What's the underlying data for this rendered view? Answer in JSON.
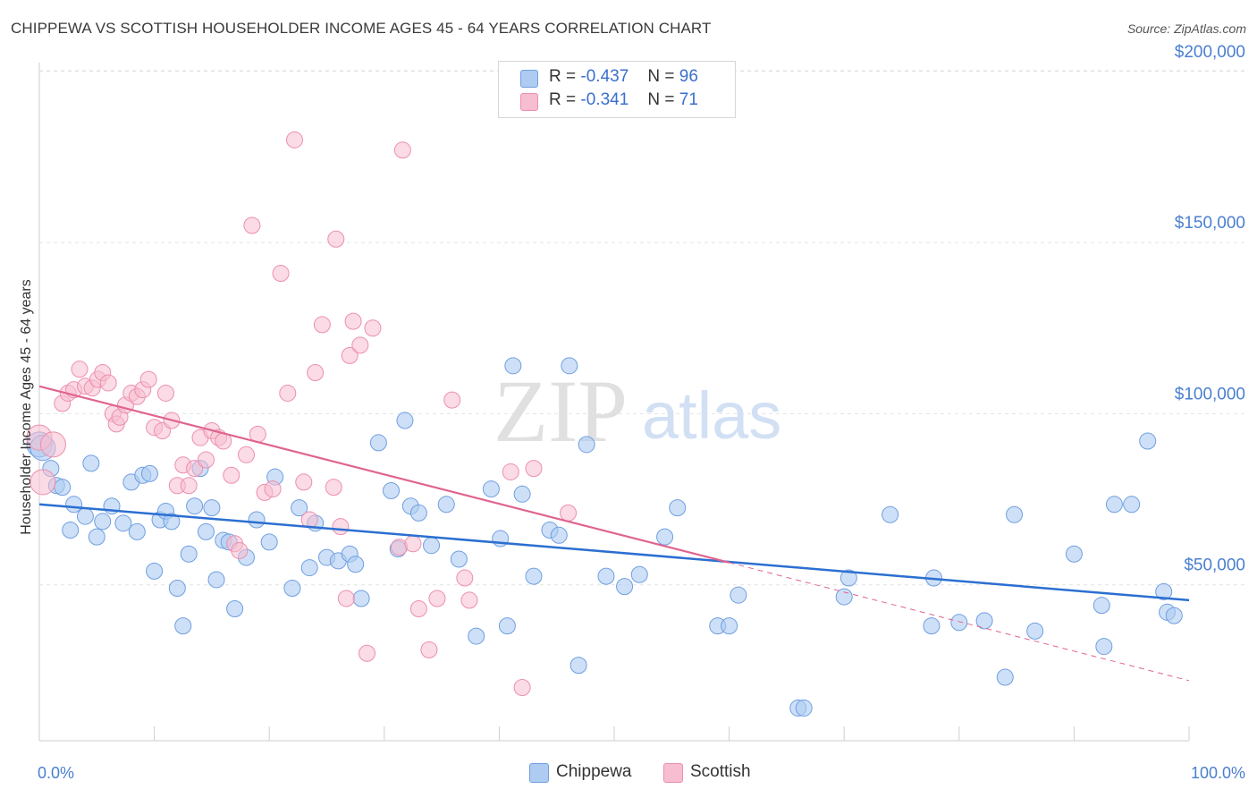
{
  "header": {
    "title": "CHIPPEWA VS SCOTTISH HOUSEHOLDER INCOME AGES 45 - 64 YEARS CORRELATION CHART",
    "source": "Source: ZipAtlas.com"
  },
  "watermark": {
    "zip": "ZIP",
    "atlas": "atlas"
  },
  "legend": {
    "chippewa": {
      "r_label": "R =",
      "r_value": "-0.437",
      "n_label": "N =",
      "n_value": "96"
    },
    "scottish": {
      "r_label": "R =",
      "r_value": "-0.341",
      "n_label": "N =",
      "n_value": "71"
    }
  },
  "colors": {
    "chippewa_fill": "#aecbf2",
    "chippewa_stroke": "#6f9fe0",
    "chippewa_line": "#2b6fd1",
    "scottish_fill": "#f7bdd0",
    "scottish_stroke": "#ec8fae",
    "scottish_line": "#e0648e",
    "axis_text": "#4a7fd0",
    "grid": "#e3e3e3"
  },
  "chart_data": {
    "type": "scatter",
    "title": "CHIPPEWA VS SCOTTISH HOUSEHOLDER INCOME AGES 45 - 64 YEARS CORRELATION CHART",
    "xlabel": "",
    "ylabel": "Householder Income Ages 45 - 64 years",
    "xlim": [
      0,
      100
    ],
    "ylim": [
      0,
      210000
    ],
    "x_tick_labels": [
      "0.0%",
      "100.0%"
    ],
    "y_ticks": [
      50000,
      100000,
      150000,
      200000
    ],
    "y_tick_labels": [
      "$50,000",
      "$100,000",
      "$150,000",
      "$200,000"
    ],
    "grid": true,
    "legend_position": "top-center",
    "series": [
      {
        "name": "Chippewa",
        "r": -0.437,
        "n": 96,
        "trend": {
          "x": [
            0,
            100
          ],
          "y": [
            73500,
            45500
          ]
        },
        "points": [
          [
            0,
            91000
          ],
          [
            0.3,
            90000
          ],
          [
            1,
            84000
          ],
          [
            1.5,
            79000
          ],
          [
            2,
            78500
          ],
          [
            2.7,
            66000
          ],
          [
            3,
            73500
          ],
          [
            4,
            70000
          ],
          [
            4.5,
            85500
          ],
          [
            5,
            64000
          ],
          [
            5.5,
            68500
          ],
          [
            6.3,
            73000
          ],
          [
            7.3,
            68000
          ],
          [
            8,
            80000
          ],
          [
            8.5,
            65500
          ],
          [
            9,
            82000
          ],
          [
            9.6,
            82500
          ],
          [
            10,
            54000
          ],
          [
            10.5,
            69000
          ],
          [
            11,
            71500
          ],
          [
            11.5,
            68500
          ],
          [
            12,
            49000
          ],
          [
            12.5,
            38000
          ],
          [
            13,
            59000
          ],
          [
            13.5,
            73000
          ],
          [
            14,
            84000
          ],
          [
            14.5,
            65500
          ],
          [
            15,
            72500
          ],
          [
            15.4,
            51500
          ],
          [
            16,
            63000
          ],
          [
            16.5,
            62500
          ],
          [
            17,
            43000
          ],
          [
            18,
            58000
          ],
          [
            18.9,
            69000
          ],
          [
            20,
            62500
          ],
          [
            20.5,
            81500
          ],
          [
            22,
            49000
          ],
          [
            22.6,
            72500
          ],
          [
            23.5,
            55000
          ],
          [
            24,
            68000
          ],
          [
            25,
            58000
          ],
          [
            26,
            57000
          ],
          [
            27,
            59000
          ],
          [
            27.5,
            56000
          ],
          [
            28,
            46000
          ],
          [
            29.5,
            91500
          ],
          [
            30.6,
            77500
          ],
          [
            31.2,
            60500
          ],
          [
            31.8,
            98000
          ],
          [
            32.3,
            73000
          ],
          [
            33,
            71000
          ],
          [
            34.1,
            61500
          ],
          [
            35.4,
            73500
          ],
          [
            36.5,
            57500
          ],
          [
            38,
            35000
          ],
          [
            39.3,
            78000
          ],
          [
            40.1,
            63500
          ],
          [
            40.7,
            38000
          ],
          [
            41.2,
            114000
          ],
          [
            42,
            76500
          ],
          [
            43,
            52500
          ],
          [
            44.4,
            66000
          ],
          [
            45.2,
            64500
          ],
          [
            46.1,
            114000
          ],
          [
            46.9,
            26500
          ],
          [
            47.6,
            91000
          ],
          [
            49.3,
            52500
          ],
          [
            50.9,
            49500
          ],
          [
            52.2,
            53000
          ],
          [
            54.4,
            64000
          ],
          [
            55.5,
            72500
          ],
          [
            59,
            38000
          ],
          [
            60,
            38000
          ],
          [
            60.8,
            47000
          ],
          [
            66,
            14000
          ],
          [
            66.5,
            14000
          ],
          [
            70,
            46500
          ],
          [
            70.4,
            52000
          ],
          [
            74,
            70500
          ],
          [
            77.6,
            38000
          ],
          [
            77.8,
            52000
          ],
          [
            80,
            39000
          ],
          [
            82.2,
            39500
          ],
          [
            84,
            23000
          ],
          [
            84.8,
            70500
          ],
          [
            86.6,
            36500
          ],
          [
            90,
            59000
          ],
          [
            92.4,
            44000
          ],
          [
            92.6,
            32000
          ],
          [
            93.5,
            73500
          ],
          [
            95,
            73500
          ],
          [
            96.4,
            92000
          ],
          [
            97.8,
            48000
          ],
          [
            98.1,
            42000
          ],
          [
            98.7,
            41000
          ]
        ]
      },
      {
        "name": "Scottish",
        "r": -0.341,
        "n": 71,
        "trend": {
          "x": [
            0,
            60
          ],
          "y": [
            108000,
            56500
          ]
        },
        "trend_extension": {
          "x": [
            60,
            100
          ],
          "y": [
            56500,
            22000
          ]
        },
        "points": [
          [
            0,
            93000
          ],
          [
            0.3,
            80000
          ],
          [
            1.2,
            91000
          ],
          [
            2,
            103000
          ],
          [
            2.5,
            106000
          ],
          [
            3,
            107000
          ],
          [
            3.5,
            113000
          ],
          [
            4,
            108000
          ],
          [
            4.6,
            107500
          ],
          [
            5.1,
            110000
          ],
          [
            5.5,
            112000
          ],
          [
            6,
            109000
          ],
          [
            6.4,
            100000
          ],
          [
            6.7,
            97000
          ],
          [
            7,
            99000
          ],
          [
            7.5,
            102500
          ],
          [
            8,
            106000
          ],
          [
            8.5,
            105000
          ],
          [
            9,
            107000
          ],
          [
            9.5,
            110000
          ],
          [
            10,
            96000
          ],
          [
            10.7,
            95000
          ],
          [
            11,
            106000
          ],
          [
            11.5,
            98000
          ],
          [
            12,
            79000
          ],
          [
            12.5,
            85000
          ],
          [
            13,
            79000
          ],
          [
            13.5,
            84000
          ],
          [
            14,
            93000
          ],
          [
            14.5,
            86500
          ],
          [
            15,
            95000
          ],
          [
            15.6,
            93000
          ],
          [
            16,
            92000
          ],
          [
            16.7,
            82000
          ],
          [
            17,
            62000
          ],
          [
            17.4,
            60000
          ],
          [
            18,
            88000
          ],
          [
            18.5,
            155000
          ],
          [
            19,
            94000
          ],
          [
            19.6,
            77000
          ],
          [
            20.3,
            78000
          ],
          [
            21,
            141000
          ],
          [
            21.6,
            106000
          ],
          [
            22.2,
            180000
          ],
          [
            23,
            80000
          ],
          [
            23.5,
            69000
          ],
          [
            24,
            112000
          ],
          [
            24.6,
            126000
          ],
          [
            25.6,
            78500
          ],
          [
            25.8,
            151000
          ],
          [
            26.2,
            67000
          ],
          [
            26.7,
            46000
          ],
          [
            27,
            117000
          ],
          [
            27.3,
            127000
          ],
          [
            27.9,
            120000
          ],
          [
            28.5,
            30000
          ],
          [
            29,
            125000
          ],
          [
            31.3,
            61000
          ],
          [
            31.6,
            177000
          ],
          [
            32.5,
            62000
          ],
          [
            33,
            43000
          ],
          [
            33.9,
            31000
          ],
          [
            34.6,
            46000
          ],
          [
            35.9,
            104000
          ],
          [
            37,
            52000
          ],
          [
            37.4,
            45500
          ],
          [
            41,
            83000
          ],
          [
            42,
            20000
          ],
          [
            43,
            84000
          ],
          [
            46,
            71000
          ]
        ]
      }
    ]
  }
}
